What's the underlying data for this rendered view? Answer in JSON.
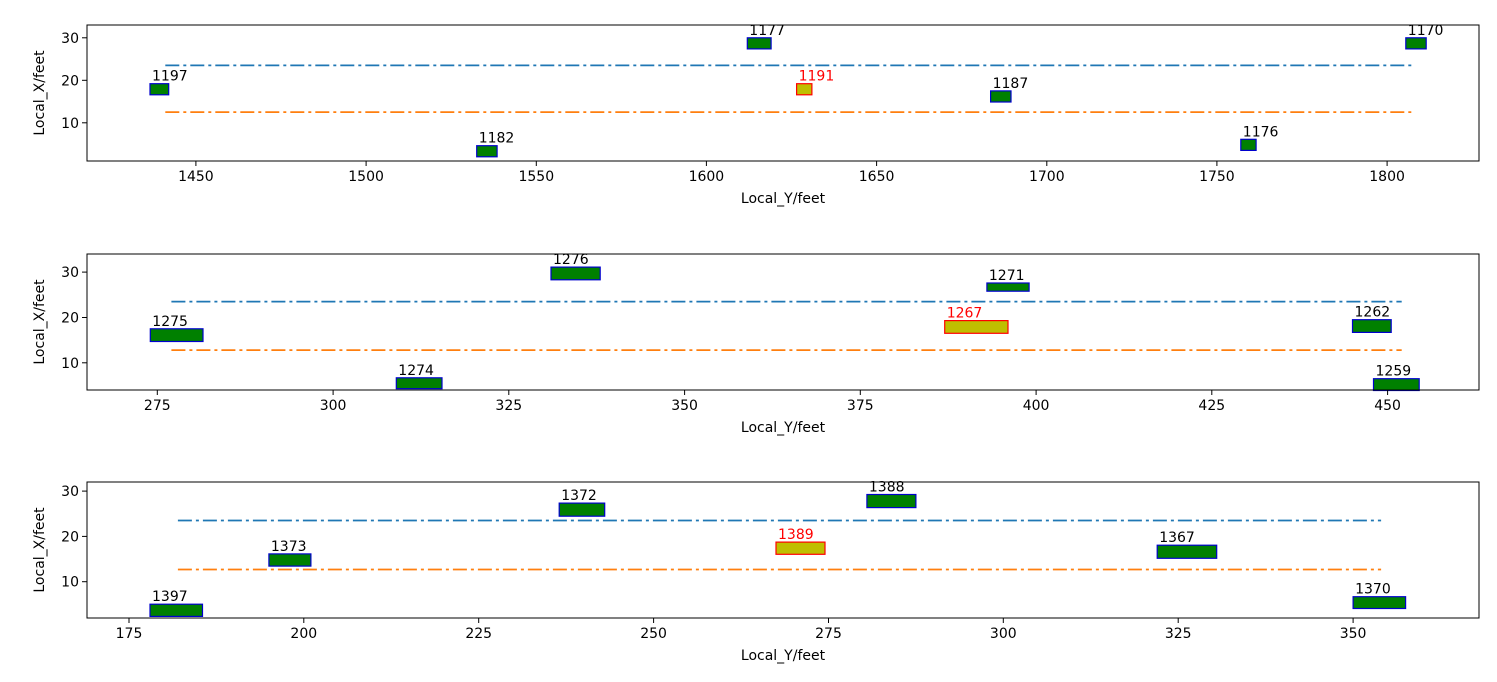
{
  "chart_data": [
    {
      "type": "scatter",
      "title": "",
      "xlabel": "Local_Y/feet",
      "ylabel": "Local_X/feet",
      "xlim": [
        1418,
        1827
      ],
      "ylim": [
        1,
        33
      ],
      "xticks": [
        1450,
        1500,
        1550,
        1600,
        1650,
        1700,
        1750,
        1800
      ],
      "yticks": [
        10,
        20,
        30
      ],
      "lanes": [
        {
          "x": [
            1441,
            1808
          ],
          "y": 23.5,
          "color": "#1f77b4"
        },
        {
          "x": [
            1441,
            1808
          ],
          "y": 12.5,
          "color": "#ff7f0e"
        }
      ],
      "vehicles": [
        {
          "id": "1197",
          "x": 1436.5,
          "y": 17.9,
          "length": 5.5,
          "width": 2.6,
          "highlight": false
        },
        {
          "id": "1182",
          "x": 1532.5,
          "y": 3.3,
          "length": 6,
          "width": 2.6,
          "highlight": false
        },
        {
          "id": "1177",
          "x": 1612,
          "y": 28.7,
          "length": 7,
          "width": 2.6,
          "highlight": false
        },
        {
          "id": "1191",
          "x": 1626.5,
          "y": 17.9,
          "length": 4.5,
          "width": 2.6,
          "highlight": true
        },
        {
          "id": "1187",
          "x": 1683.5,
          "y": 16.2,
          "length": 6,
          "width": 2.6,
          "highlight": false
        },
        {
          "id": "1176",
          "x": 1757,
          "y": 4.8,
          "length": 4.5,
          "width": 2.6,
          "highlight": false
        },
        {
          "id": "1170",
          "x": 1805.5,
          "y": 28.7,
          "length": 6,
          "width": 2.6,
          "highlight": false
        }
      ]
    },
    {
      "type": "scatter",
      "title": "",
      "xlabel": "Local_Y/feet",
      "ylabel": "Local_X/feet",
      "xlim": [
        265,
        463
      ],
      "ylim": [
        4,
        34
      ],
      "xticks": [
        275,
        300,
        325,
        350,
        375,
        400,
        425,
        450
      ],
      "yticks": [
        10,
        20,
        30
      ],
      "lanes": [
        {
          "x": [
            277,
            452
          ],
          "y": 23.5,
          "color": "#1f77b4"
        },
        {
          "x": [
            277,
            452
          ],
          "y": 12.8,
          "color": "#ff7f0e"
        }
      ],
      "vehicles": [
        {
          "id": "1275",
          "x": 274,
          "y": 16.1,
          "length": 7.5,
          "width": 2.8,
          "highlight": false
        },
        {
          "id": "1274",
          "x": 309,
          "y": 5.5,
          "length": 6.5,
          "width": 2.4,
          "highlight": false
        },
        {
          "id": "1276",
          "x": 331,
          "y": 29.7,
          "length": 7,
          "width": 2.8,
          "highlight": false
        },
        {
          "id": "1267",
          "x": 387,
          "y": 17.9,
          "length": 9,
          "width": 2.8,
          "highlight": true
        },
        {
          "id": "1271",
          "x": 393,
          "y": 26.7,
          "length": 6,
          "width": 1.8,
          "highlight": false
        },
        {
          "id": "1262",
          "x": 445,
          "y": 18.1,
          "length": 5.5,
          "width": 2.8,
          "highlight": false
        },
        {
          "id": "1259",
          "x": 448,
          "y": 5.2,
          "length": 6.5,
          "width": 2.6,
          "highlight": false
        }
      ]
    },
    {
      "type": "scatter",
      "title": "",
      "xlabel": "Local_Y/feet",
      "ylabel": "Local_X/feet",
      "xlim": [
        169,
        368
      ],
      "ylim": [
        2,
        32
      ],
      "xticks": [
        175,
        200,
        225,
        250,
        275,
        300,
        325,
        350
      ],
      "yticks": [
        10,
        20,
        30
      ],
      "lanes": [
        {
          "x": [
            182,
            354
          ],
          "y": 23.5,
          "color": "#1f77b4"
        },
        {
          "x": [
            182,
            354
          ],
          "y": 12.7,
          "color": "#ff7f0e"
        }
      ],
      "vehicles": [
        {
          "id": "1397",
          "x": 178,
          "y": 3.7,
          "length": 7.5,
          "width": 2.7,
          "highlight": false
        },
        {
          "id": "1373",
          "x": 195,
          "y": 14.8,
          "length": 6,
          "width": 2.7,
          "highlight": false
        },
        {
          "id": "1372",
          "x": 236.5,
          "y": 25.9,
          "length": 6.5,
          "width": 2.9,
          "highlight": false
        },
        {
          "id": "1389",
          "x": 267.5,
          "y": 17.4,
          "length": 7,
          "width": 2.7,
          "highlight": true
        },
        {
          "id": "1388",
          "x": 280.5,
          "y": 27.8,
          "length": 7,
          "width": 2.9,
          "highlight": false
        },
        {
          "id": "1367",
          "x": 322,
          "y": 16.6,
          "length": 8.5,
          "width": 2.9,
          "highlight": false
        },
        {
          "id": "1370",
          "x": 350,
          "y": 5.4,
          "length": 7.5,
          "width": 2.6,
          "highlight": false
        }
      ]
    }
  ],
  "colors": {
    "vehicle_fill": "#008000",
    "vehicle_edge": "#0000cd",
    "highlight_fill": "#bfbf00",
    "highlight_edge": "#ff0000",
    "highlight_text": "#ff0000",
    "normal_text": "#000000"
  }
}
